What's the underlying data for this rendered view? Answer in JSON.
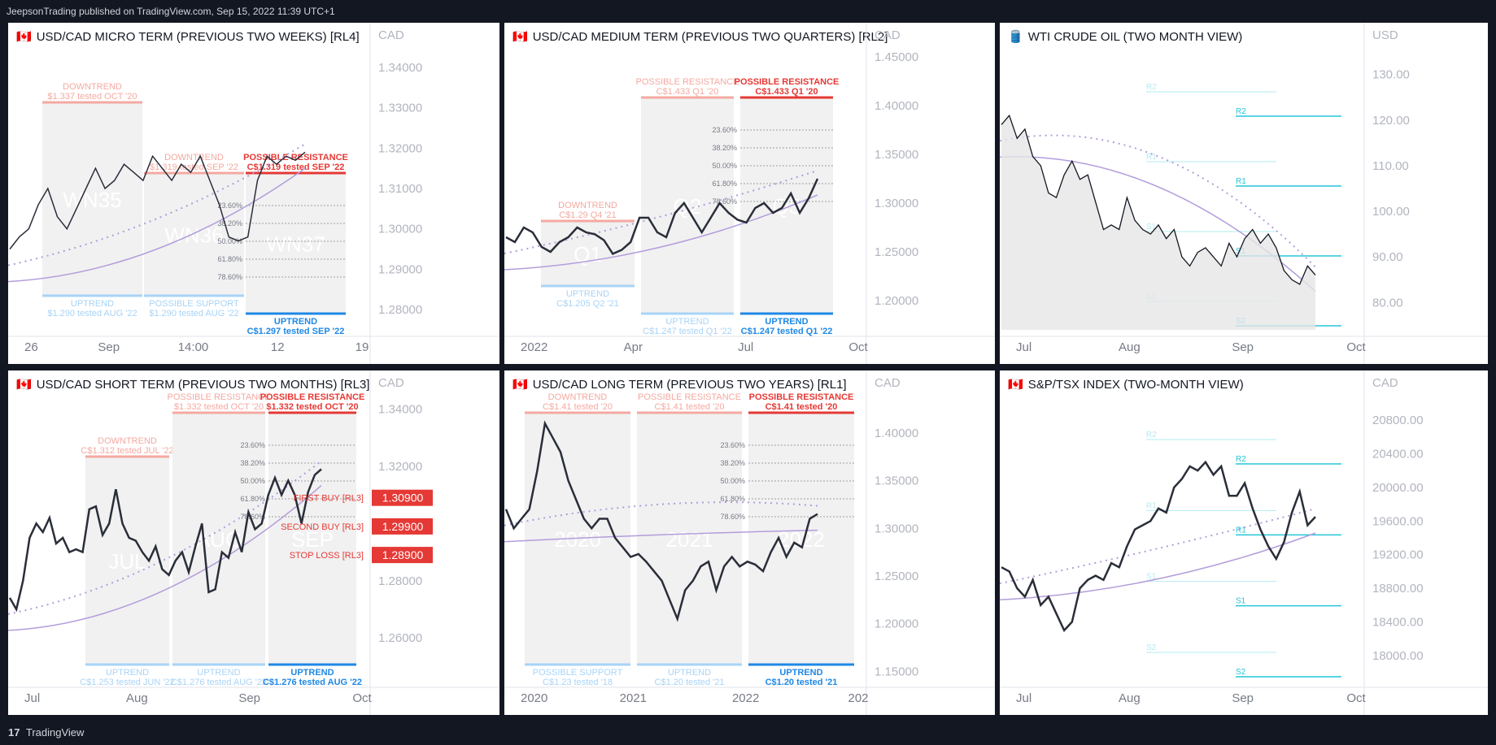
{
  "header": {
    "publisher": "JeepsonTrading published on TradingView.com, Sep 15, 2022 11:39 UTC+1"
  },
  "footer": {
    "brand": "TradingView"
  },
  "colors": {
    "red": "#e53935",
    "blue": "#1e88e5",
    "lightred": "#f4a9a1",
    "lightblue": "#a8d4f7",
    "line": "#2a2e39",
    "purple": "#b39ddb",
    "cyan": "#26c6da"
  },
  "chart_data": [
    {
      "id": "p1",
      "type": "line",
      "flag": "🇨🇦",
      "currency": "CAD",
      "title": "USD/CAD MICRO TERM (PREVIOUS TWO WEEKS) [RL4]",
      "ylim": [
        1.275,
        1.345
      ],
      "y_ticks": [
        "1.34000",
        "1.33000",
        "1.32000",
        "1.31000",
        "1.30000",
        "1.29000",
        "1.28000"
      ],
      "y_tick_values": [
        1.34,
        1.33,
        1.32,
        1.31,
        1.3,
        1.29,
        1.28
      ],
      "x_ticks": [
        "26",
        "Sep",
        "14:00",
        "12",
        "19"
      ],
      "watermarks": [
        "WN35",
        "WN36",
        "WN37"
      ],
      "series": [
        {
          "name": "price",
          "values": [
            1.295,
            1.298,
            1.3,
            1.306,
            1.31,
            1.303,
            1.3,
            1.305,
            1.31,
            1.315,
            1.31,
            1.312,
            1.316,
            1.314,
            1.312,
            1.318,
            1.315,
            1.312,
            1.316,
            1.314,
            1.318,
            1.312,
            1.306,
            1.298,
            1.297,
            1.298,
            1.312,
            1.318,
            1.316,
            1.318,
            1.317,
            1.319
          ]
        }
      ],
      "zones": [
        {
          "label": "DOWNTREND",
          "sub": "$1.337 tested OCT '20",
          "kind": "top",
          "tone": "light"
        },
        {
          "label": "DOWNTREND",
          "sub": "$1.319 tested SEP '22",
          "kind": "top",
          "tone": "light"
        },
        {
          "label": "POSSIBLE RESISTANCE",
          "sub": "C$1.319 tested SEP '22",
          "kind": "top",
          "tone": "strong"
        }
      ],
      "supports": [
        {
          "label": "UPTREND",
          "sub": "$1.290 tested AUG '22",
          "tone": "light"
        },
        {
          "label": "POSSIBLE SUPPORT",
          "sub": "$1.290 tested AUG '22",
          "tone": "light"
        },
        {
          "label": "UPTREND",
          "sub": "C$1.297 tested SEP '22",
          "tone": "strong"
        }
      ],
      "fib": [
        "23.60%",
        "38.20%",
        "50.00%",
        "61.80%",
        "78.60%"
      ]
    },
    {
      "id": "p2",
      "type": "line",
      "flag": "🇨🇦",
      "currency": "CAD",
      "title": "USD/CAD MEDIUM TERM (PREVIOUS TWO QUARTERS) [RL2]",
      "ylim": [
        1.17,
        1.46
      ],
      "y_ticks": [
        "1.45000",
        "1.40000",
        "1.35000",
        "1.30000",
        "1.25000",
        "1.20000"
      ],
      "y_tick_values": [
        1.45,
        1.4,
        1.35,
        1.3,
        1.25,
        1.2
      ],
      "x_ticks": [
        "2022",
        "Apr",
        "Jul",
        "Oct"
      ],
      "watermarks": [
        "Q1",
        "Q2",
        "Q3"
      ],
      "series": [
        {
          "name": "price",
          "values": [
            1.265,
            1.26,
            1.275,
            1.27,
            1.255,
            1.25,
            1.26,
            1.265,
            1.275,
            1.27,
            1.268,
            1.262,
            1.248,
            1.252,
            1.26,
            1.285,
            1.285,
            1.27,
            1.265,
            1.29,
            1.3,
            1.285,
            1.27,
            1.285,
            1.3,
            1.29,
            1.283,
            1.28,
            1.295,
            1.3,
            1.29,
            1.295,
            1.31,
            1.29,
            1.305,
            1.325
          ]
        }
      ],
      "zones": [
        {
          "label": "DOWNTREND",
          "sub": "C$1.29 Q4 '21",
          "kind": "top",
          "tone": "light"
        },
        {
          "label": "POSSIBLE RESISTANCE",
          "sub": "C$1.433 Q1 '20",
          "kind": "top",
          "tone": "light"
        },
        {
          "label": "POSSIBLE RESISTANCE",
          "sub": "C$1.433 Q1 '20",
          "kind": "top",
          "tone": "strong"
        }
      ],
      "supports": [
        {
          "label": "UPTREND",
          "sub": "C$1.205 Q2 '21",
          "tone": "light"
        },
        {
          "label": "UPTREND",
          "sub": "C$1.247 tested Q1 '22",
          "tone": "light"
        },
        {
          "label": "UPTREND",
          "sub": "C$1.247 tested Q1 '22",
          "tone": "strong"
        }
      ],
      "fib": [
        "23.60%",
        "38.20%",
        "50.00%",
        "61.80%",
        "78.60%"
      ]
    },
    {
      "id": "p3",
      "type": "area",
      "flag": "🛢️",
      "currency": "USD",
      "title": "WTI CRUDE OIL (TWO MONTH VIEW)",
      "ylim": [
        74,
        136
      ],
      "y_ticks": [
        "130.00",
        "120.00",
        "110.00",
        "100.00",
        "90.00",
        "80.00"
      ],
      "y_tick_values": [
        130,
        120,
        110,
        100,
        90,
        80
      ],
      "x_ticks": [
        "Jul",
        "Aug",
        "Sep",
        "Oct"
      ],
      "series": [
        {
          "name": "price",
          "values": [
            119,
            121,
            116,
            118,
            112,
            110,
            104,
            103,
            108,
            111,
            107,
            108,
            102,
            96,
            97,
            96,
            103,
            98,
            96,
            95,
            97,
            94,
            96,
            90,
            88,
            91,
            92,
            90,
            88,
            93,
            90,
            94,
            96,
            93,
            95,
            92,
            87,
            85,
            84,
            88,
            86
          ]
        }
      ],
      "pivots": [
        "R2",
        "R1",
        "S1",
        "S2"
      ]
    },
    {
      "id": "p4",
      "type": "line",
      "flag": "🇨🇦",
      "currency": "CAD",
      "title": "USD/CAD SHORT TERM (PREVIOUS TWO MONTHS) [RL3]",
      "ylim": [
        1.245,
        1.345
      ],
      "y_ticks": [
        "1.34000",
        "1.32000",
        "1.30000",
        "1.28000",
        "1.26000"
      ],
      "y_tick_values": [
        1.34,
        1.32,
        1.3,
        1.28,
        1.26
      ],
      "x_ticks": [
        "Jul",
        "Aug",
        "Sep",
        "Oct"
      ],
      "watermarks": [
        "JUL",
        "AUG",
        "SEP"
      ],
      "series": [
        {
          "name": "price",
          "values": [
            1.274,
            1.27,
            1.28,
            1.295,
            1.3,
            1.297,
            1.302,
            1.293,
            1.295,
            1.29,
            1.291,
            1.29,
            1.305,
            1.306,
            1.296,
            1.3,
            1.312,
            1.3,
            1.295,
            1.294,
            1.29,
            1.287,
            1.292,
            1.284,
            1.282,
            1.287,
            1.29,
            1.283,
            1.292,
            1.3,
            1.276,
            1.277,
            1.29,
            1.288,
            1.297,
            1.29,
            1.304,
            1.298,
            1.3,
            1.31,
            1.316,
            1.31,
            1.315,
            1.31,
            1.3,
            1.311,
            1.317,
            1.319
          ]
        }
      ],
      "zones": [
        {
          "label": "DOWNTREND",
          "sub": "C$1.312 tested JUL '22",
          "kind": "top",
          "tone": "light"
        },
        {
          "label": "POSSIBLE RESISTANCE",
          "sub": "$1.332 tested OCT '20",
          "kind": "top",
          "tone": "light"
        },
        {
          "label": "POSSIBLE RESISTANCE",
          "sub": "$1.332 tested OCT '20",
          "kind": "top",
          "tone": "strong"
        }
      ],
      "supports": [
        {
          "label": "UPTREND",
          "sub": "C$1.253 tested JUN '22",
          "tone": "light"
        },
        {
          "label": "UPTREND",
          "sub": "C$1.276 tested AUG '22",
          "tone": "light"
        },
        {
          "label": "UPTREND",
          "sub": "C$1.276 tested AUG '22",
          "tone": "strong"
        }
      ],
      "levels": [
        {
          "label": "FIRST BUY [RL3]",
          "value": 1.309,
          "price": "1.30900"
        },
        {
          "label": "SECOND BUY [RL3]",
          "value": 1.299,
          "price": "1.29900"
        },
        {
          "label": "STOP LOSS [RL3]",
          "value": 1.289,
          "price": "1.28900"
        }
      ],
      "fib": [
        "23.60%",
        "38.20%",
        "50.00%",
        "61.80%",
        "78.60%"
      ]
    },
    {
      "id": "p5",
      "type": "line",
      "flag": "🇨🇦",
      "currency": "CAD",
      "title": "USD/CAD LONG TERM (PREVIOUS TWO YEARS) [RL1]",
      "ylim": [
        1.14,
        1.44
      ],
      "y_ticks": [
        "1.40000",
        "1.35000",
        "1.30000",
        "1.25000",
        "1.20000",
        "1.15000"
      ],
      "y_tick_values": [
        1.4,
        1.35,
        1.3,
        1.25,
        1.2,
        1.15
      ],
      "x_ticks": [
        "2020",
        "2021",
        "2022",
        "202"
      ],
      "watermarks": [
        "2020",
        "2021",
        "2022"
      ],
      "series": [
        {
          "name": "price",
          "values": [
            1.32,
            1.3,
            1.31,
            1.32,
            1.36,
            1.41,
            1.395,
            1.38,
            1.35,
            1.33,
            1.31,
            1.3,
            1.31,
            1.31,
            1.29,
            1.28,
            1.27,
            1.273,
            1.265,
            1.255,
            1.245,
            1.225,
            1.205,
            1.235,
            1.245,
            1.26,
            1.265,
            1.235,
            1.26,
            1.27,
            1.26,
            1.265,
            1.262,
            1.255,
            1.275,
            1.29,
            1.27,
            1.285,
            1.28,
            1.31,
            1.315
          ]
        }
      ],
      "zones": [
        {
          "label": "DOWNTREND",
          "sub": "C$1.41 tested '20",
          "kind": "top",
          "tone": "light"
        },
        {
          "label": "POSSIBLE RESISTANCE",
          "sub": "C$1.41 tested '20",
          "kind": "top",
          "tone": "light"
        },
        {
          "label": "POSSIBLE RESISTANCE",
          "sub": "C$1.41 tested '20",
          "kind": "top",
          "tone": "strong"
        }
      ],
      "supports": [
        {
          "label": "POSSIBLE SUPPORT",
          "sub": "C$1.23 tested '18",
          "tone": "light"
        },
        {
          "label": "UPTREND",
          "sub": "C$1.20 tested '21",
          "tone": "light"
        },
        {
          "label": "UPTREND",
          "sub": "C$1.20 tested '21",
          "tone": "strong"
        }
      ],
      "fib": [
        "23.60%",
        "38.20%",
        "50.00%",
        "61.80%",
        "78.60%"
      ]
    },
    {
      "id": "p6",
      "type": "line",
      "flag": "🇨🇦",
      "currency": "CAD",
      "title": "S&P/TSX INDEX (TWO-MONTH VIEW)",
      "ylim": [
        17700,
        21100
      ],
      "y_ticks": [
        "20800.00",
        "20400.00",
        "20000.00",
        "19600.00",
        "19200.00",
        "18800.00",
        "18400.00",
        "18000.00"
      ],
      "y_tick_values": [
        20800,
        20400,
        20000,
        19600,
        19200,
        18800,
        18400,
        18000
      ],
      "x_ticks": [
        "Jul",
        "Aug",
        "Sep",
        "Oct"
      ],
      "series": [
        {
          "name": "price",
          "values": [
            19050,
            19000,
            18800,
            18700,
            18900,
            18600,
            18700,
            18500,
            18300,
            18400,
            18800,
            18900,
            18950,
            18900,
            19100,
            19050,
            19300,
            19500,
            19550,
            19600,
            19750,
            19700,
            20000,
            20100,
            20250,
            20200,
            20300,
            20150,
            20250,
            19900,
            19900,
            20050,
            19750,
            19500,
            19300,
            19150,
            19350,
            19700,
            19950,
            19550,
            19650
          ]
        }
      ],
      "pivots": [
        "R2",
        "R1",
        "S1",
        "S2"
      ]
    }
  ]
}
